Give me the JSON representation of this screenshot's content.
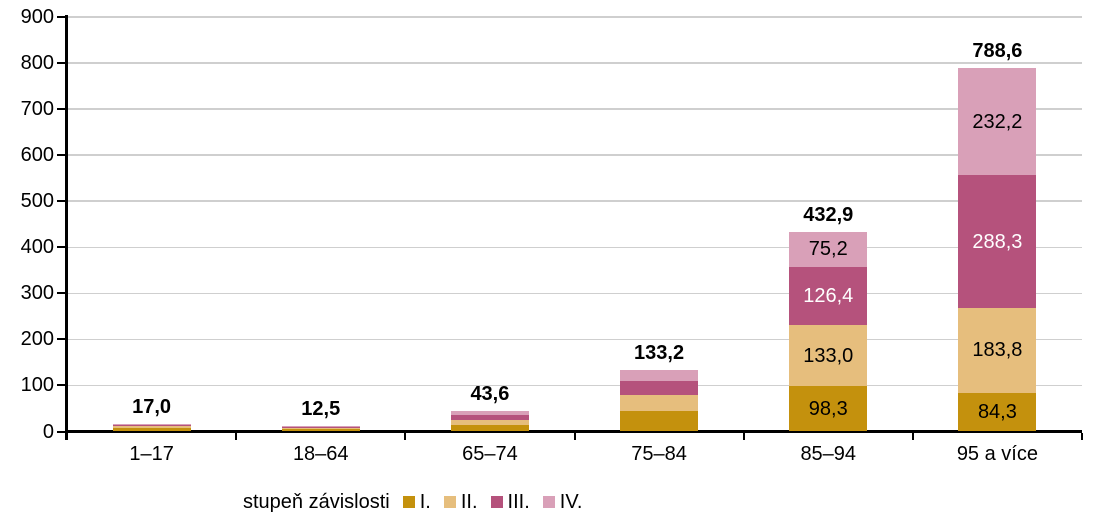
{
  "chart_data": {
    "type": "bar",
    "stacked": true,
    "categories": [
      "1–17",
      "18–64",
      "65–74",
      "75–84",
      "85–94",
      "95 a více"
    ],
    "series": [
      {
        "name": "I.",
        "color": "#C4910D",
        "label_color": "#000000",
        "values": [
          7.5,
          5.5,
          13.5,
          44.0,
          98.3,
          84.3
        ],
        "value_labels": [
          null,
          null,
          null,
          null,
          "98,3",
          "84,3"
        ]
      },
      {
        "name": "II.",
        "color": "#E6BE7D",
        "label_color": "#000000",
        "values": [
          3.5,
          3.0,
          11.5,
          35.0,
          133.0,
          183.8
        ],
        "value_labels": [
          null,
          null,
          null,
          null,
          "133,0",
          "183,8"
        ]
      },
      {
        "name": "III.",
        "color": "#B5527C",
        "label_color": "#FFFFFF",
        "values": [
          3.5,
          2.5,
          10.0,
          31.0,
          126.4,
          288.3
        ],
        "value_labels": [
          null,
          null,
          null,
          null,
          "126,4",
          "288,3"
        ]
      },
      {
        "name": "IV.",
        "color": "#D9A0B8",
        "label_color": "#000000",
        "values": [
          2.5,
          1.5,
          8.6,
          23.2,
          75.2,
          232.2
        ],
        "value_labels": [
          null,
          null,
          null,
          null,
          "75,2",
          "232,2"
        ]
      }
    ],
    "totals": {
      "values": [
        17.0,
        12.5,
        43.6,
        133.2,
        432.9,
        788.6
      ],
      "labels": [
        "17,0",
        "12,5",
        "43,6",
        "133,2",
        "432,9",
        "788,6"
      ]
    },
    "ylim": [
      0,
      900
    ],
    "y_ticks": [
      0,
      100,
      200,
      300,
      400,
      500,
      600,
      700,
      800,
      900
    ],
    "grid": "horizontal",
    "legend": {
      "title": "stupeň závislosti",
      "position": "bottom",
      "items": [
        "I.",
        "II.",
        "III.",
        "IV."
      ]
    },
    "colors": {
      "axis": "#000000",
      "gridline": "#cfcfcf",
      "background": "#ffffff"
    }
  }
}
